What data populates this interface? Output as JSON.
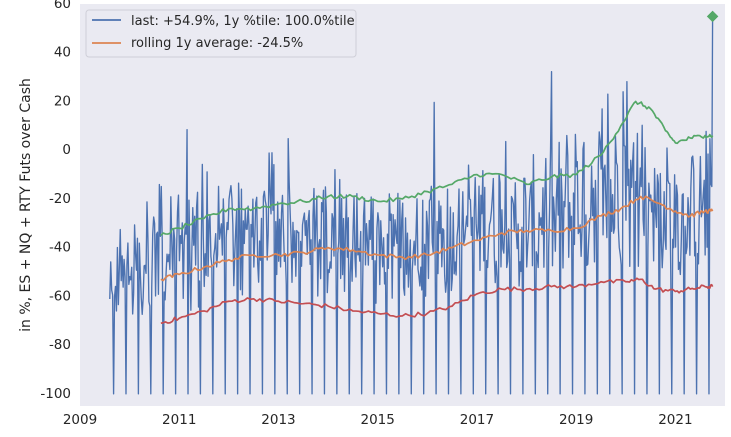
{
  "chart_data": {
    "type": "line",
    "title": "",
    "xlabel": "",
    "ylabel": "in %, ES + NQ + RTY Futs over Cash",
    "xlim": [
      2009.0,
      2022.0
    ],
    "ylim": [
      -105,
      60
    ],
    "grid": false,
    "legend_position": "top-left",
    "x_ticks": [
      {
        "value": 2009,
        "label": "2009"
      },
      {
        "value": 2011,
        "label": "2011"
      },
      {
        "value": 2013,
        "label": "2013"
      },
      {
        "value": 2015,
        "label": "2015"
      },
      {
        "value": 2017,
        "label": "2017"
      },
      {
        "value": 2019,
        "label": "2019"
      },
      {
        "value": 2021,
        "label": "2021"
      }
    ],
    "y_ticks": [
      {
        "value": 60,
        "label": "60"
      },
      {
        "value": 40,
        "label": "40"
      },
      {
        "value": 20,
        "label": "20"
      },
      {
        "value": 0,
        "label": "0"
      },
      {
        "value": -20,
        "label": "-20"
      },
      {
        "value": -40,
        "label": "-40"
      },
      {
        "value": -60,
        "label": "-60"
      },
      {
        "value": -80,
        "label": "-80"
      },
      {
        "value": -100,
        "label": "-100"
      }
    ],
    "series": [
      {
        "name": "last: +54.9%, 1y %tile: 100.0%tile",
        "color": "#4c72b0",
        "in_legend": true,
        "style": "volatile-weekly",
        "trend_x": [
          2009.6,
          2010.0,
          2010.5,
          2011.0,
          2011.5,
          2012.0,
          2012.5,
          2013.0,
          2013.5,
          2014.0,
          2014.5,
          2015.0,
          2015.5,
          2016.0,
          2016.5,
          2017.0,
          2017.5,
          2018.0,
          2018.5,
          2019.0,
          2019.5,
          2020.0,
          2020.5,
          2021.0,
          2021.5,
          2021.75
        ],
        "trend_y": [
          -55,
          -52,
          -48,
          -44,
          -40,
          -38,
          -37,
          -36,
          -36,
          -35,
          -38,
          -40,
          -42,
          -38,
          -34,
          -30,
          -30,
          -32,
          -28,
          -20,
          -18,
          -15,
          -20,
          -28,
          -26,
          -20
        ],
        "amplitude": [
          8,
          10,
          14,
          18,
          18,
          16,
          15,
          15,
          15,
          16,
          16,
          16,
          17,
          18,
          18,
          18,
          18,
          18,
          19,
          22,
          22,
          22,
          20,
          18,
          18,
          18
        ],
        "drop_interval_years": 0.25,
        "drop_first_year": 2009.68,
        "drop_value": -100,
        "last_value": 54.9,
        "y_range": [
          -100,
          54.9
        ]
      },
      {
        "name": "rolling 1y average: -24.5%",
        "color": "#dd8452",
        "in_legend": true,
        "style": "smooth",
        "x": [
          2010.63,
          2011.0,
          2011.5,
          2012.0,
          2012.5,
          2013.0,
          2013.5,
          2014.0,
          2014.5,
          2015.0,
          2015.5,
          2016.0,
          2016.5,
          2017.0,
          2017.5,
          2018.0,
          2018.5,
          2019.0,
          2019.5,
          2019.9,
          2020.3,
          2020.7,
          2021.0,
          2021.3,
          2021.6,
          2021.75
        ],
        "y": [
          -53,
          -51,
          -48,
          -45,
          -43,
          -43,
          -42,
          -40,
          -41,
          -43,
          -44,
          -43,
          -40,
          -37,
          -34,
          -33,
          -33,
          -32,
          -27,
          -24,
          -19,
          -22,
          -25,
          -27,
          -25,
          -25
        ]
      },
      {
        "name": "",
        "color": "#55a868",
        "in_legend": false,
        "style": "smooth",
        "x": [
          2010.63,
          2011.0,
          2011.5,
          2012.0,
          2012.5,
          2013.0,
          2013.5,
          2014.0,
          2014.5,
          2015.0,
          2015.5,
          2016.0,
          2016.5,
          2017.0,
          2017.5,
          2018.0,
          2018.5,
          2019.0,
          2019.5,
          2019.9,
          2020.2,
          2020.5,
          2020.8,
          2021.0,
          2021.3,
          2021.6,
          2021.75
        ],
        "y": [
          -35,
          -32,
          -28,
          -24,
          -24,
          -22,
          -21,
          -19,
          -19,
          -21,
          -20,
          -17,
          -14,
          -10,
          -10,
          -14,
          -11,
          -10,
          -2,
          10,
          20,
          17,
          8,
          3,
          5,
          6,
          6
        ]
      },
      {
        "name": "",
        "color": "#c44e52",
        "in_legend": false,
        "style": "smooth",
        "x": [
          2010.63,
          2011.0,
          2011.5,
          2012.0,
          2012.5,
          2013.0,
          2013.5,
          2014.0,
          2014.5,
          2015.0,
          2015.5,
          2016.0,
          2016.5,
          2017.0,
          2017.5,
          2018.0,
          2018.5,
          2019.0,
          2019.5,
          2020.0,
          2020.3,
          2020.6,
          2021.0,
          2021.3,
          2021.6,
          2021.75
        ],
        "y": [
          -71,
          -69,
          -66,
          -62,
          -61,
          -62,
          -63,
          -64,
          -66,
          -67,
          -68,
          -67,
          -64,
          -59,
          -57,
          -57,
          -56,
          -56,
          -54,
          -54,
          -53,
          -57,
          -58,
          -57,
          -56,
          -56
        ]
      }
    ],
    "markers": [
      {
        "name": "last-value-marker",
        "x": 2021.75,
        "y": 54.9,
        "shape": "diamond",
        "color": "#55a868"
      }
    ]
  }
}
